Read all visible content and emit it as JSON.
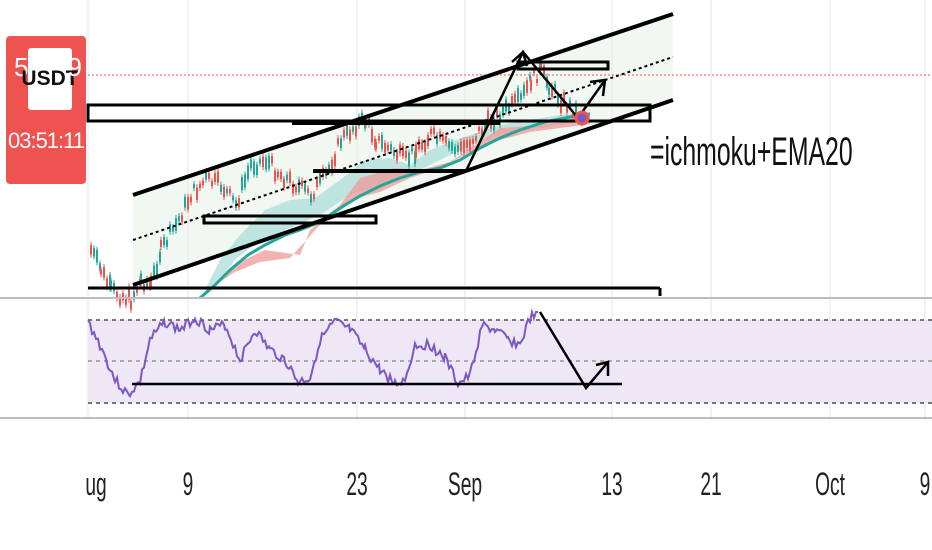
{
  "badge": {
    "symbol": "USDT",
    "left_digit": "5",
    "right_digit": "9",
    "countdown": "03:51:11",
    "color": "#ef5350"
  },
  "annotation": "=ichmoku+EMA20",
  "x_axis": {
    "ticks": [
      {
        "label": "ug",
        "date": "2021-08-01"
      },
      {
        "label": "9",
        "date": "2021-08-09"
      },
      {
        "label": "23",
        "date": "2021-08-23"
      },
      {
        "label": "Sep",
        "date": "2021-09-01"
      },
      {
        "label": "13",
        "date": "2021-09-13"
      },
      {
        "label": "21",
        "date": "2021-09-21"
      },
      {
        "label": "Oct",
        "date": "2021-10-01"
      },
      {
        "label": "9",
        "date": "2021-10-09"
      }
    ]
  },
  "colors": {
    "rsi_line": "#7e57c2",
    "rsi_band": "#ede7f6",
    "ema_line": "#26a69a",
    "cloud_bull": "#b2dfdb",
    "cloud_bear": "#ef9a9a",
    "channel_fill": "#f1f8f1",
    "price_line": "#ef5350"
  },
  "chart_data": {
    "type": "line",
    "series": [],
    "rsi": {
      "upper": 70,
      "middle": 50,
      "lower": 30
    }
  }
}
